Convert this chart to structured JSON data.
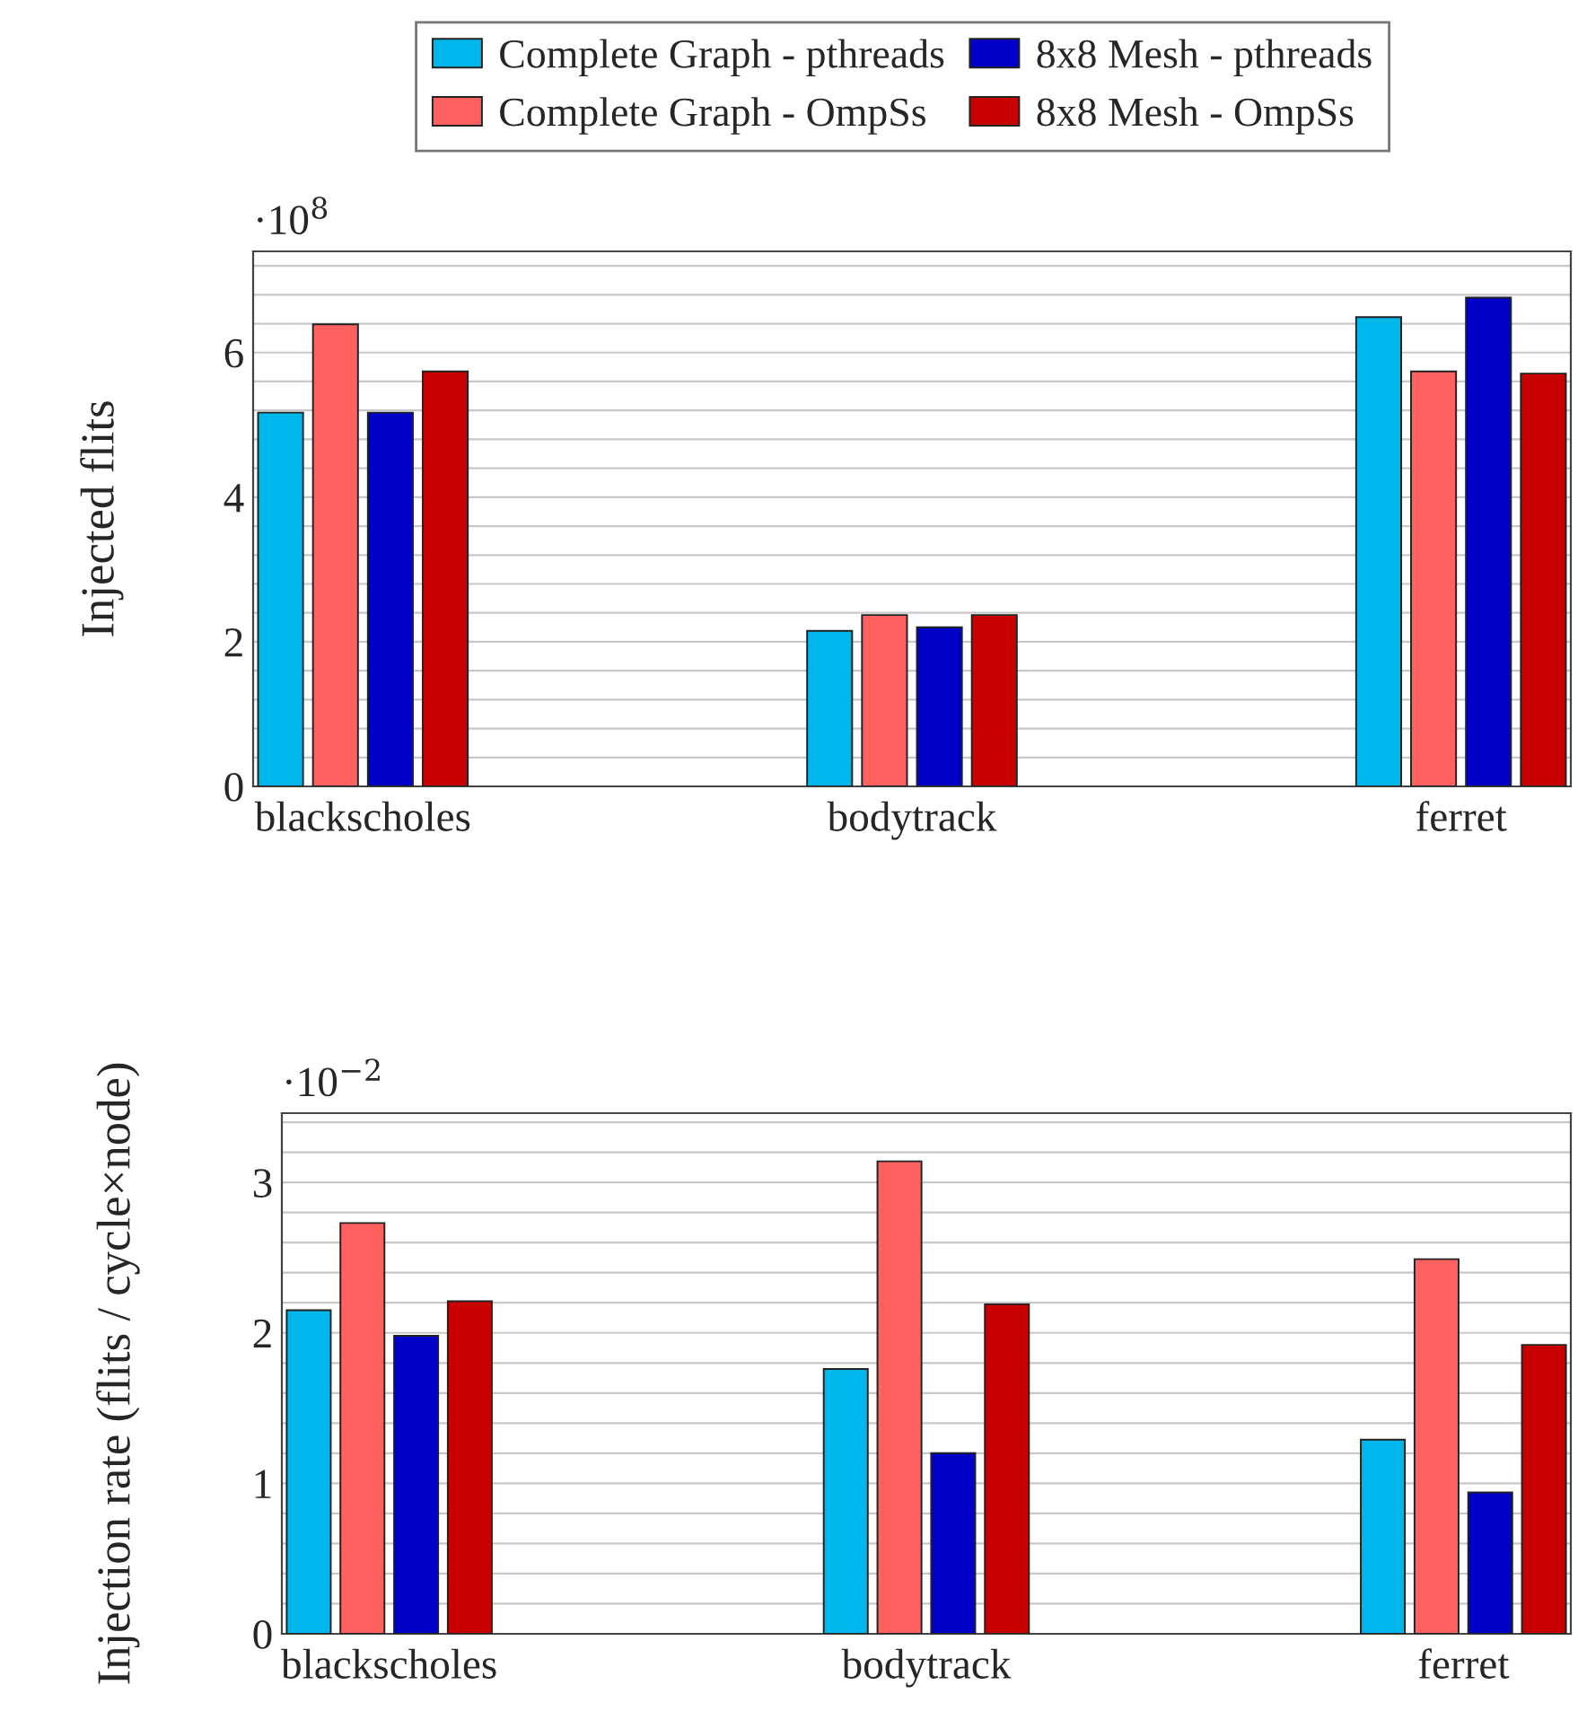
{
  "chart_data": [
    {
      "type": "bar",
      "ylabel": "Injected flits",
      "annotations": [
        "·10$^{8}$"
      ],
      "categories": [
        "blackscholes",
        "bodytrack",
        "ferret"
      ],
      "series": [
        {
          "name": "Complete Graph - pthreads",
          "color": "#00b7eb",
          "values": [
            5.17,
            2.15,
            6.49
          ]
        },
        {
          "name": "Complete Graph - OmpSs",
          "color": "#ff6161",
          "values": [
            6.39,
            2.37,
            5.74
          ]
        },
        {
          "name": "8x8 Mesh - pthreads",
          "color": "#0000c8",
          "values": [
            5.17,
            2.2,
            6.76
          ]
        },
        {
          "name": "8x8 Mesh - OmpSs",
          "color": "#c80000",
          "values": [
            5.74,
            2.37,
            5.71
          ]
        }
      ],
      "ylim": [
        0,
        7.4
      ],
      "yticks": [
        0,
        2,
        4,
        6
      ],
      "grid": "y",
      "legend": "top"
    },
    {
      "type": "bar",
      "ylabel": "Injection rate (flits / cycle×node)",
      "annotations": [
        "·10$^{−2}$"
      ],
      "categories": [
        "blackscholes",
        "bodytrack",
        "ferret"
      ],
      "series": [
        {
          "color": "#00b7eb",
          "values": [
            2.15,
            1.76,
            1.29
          ]
        },
        {
          "color": "#ff6161",
          "values": [
            2.73,
            3.14,
            2.49
          ]
        },
        {
          "color": "#0000c8",
          "values": [
            1.98,
            1.2,
            0.94
          ]
        },
        {
          "color": "#c80000",
          "values": [
            2.21,
            2.19,
            1.92
          ]
        }
      ],
      "ylim": [
        0,
        3.46
      ],
      "yticks": [
        0,
        1,
        2,
        3
      ],
      "grid": "y"
    }
  ]
}
